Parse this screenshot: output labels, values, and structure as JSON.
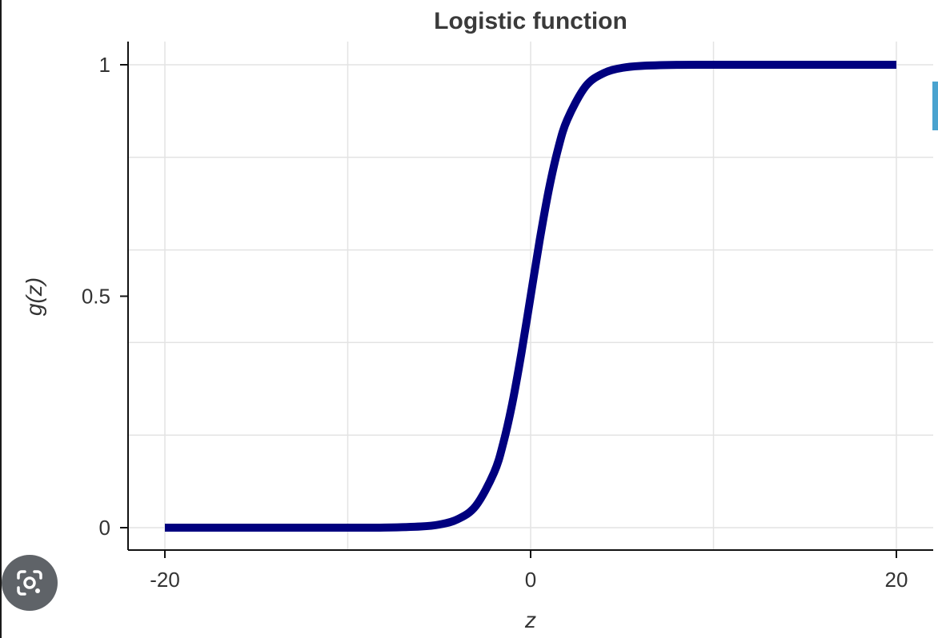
{
  "chart_data": {
    "type": "line",
    "title": "Logistic function",
    "xlabel": "z",
    "ylabel": "g(z)",
    "xlim": [
      -21,
      22
    ],
    "ylim": [
      -0.05,
      1.05
    ],
    "x_ticks": [
      {
        "value": -20,
        "label": "-20"
      },
      {
        "value": 0,
        "label": "0"
      },
      {
        "value": 20,
        "label": "20"
      }
    ],
    "y_ticks": [
      {
        "value": 0,
        "label": "0"
      },
      {
        "value": 0.5,
        "label": "0.5"
      },
      {
        "value": 1,
        "label": "1"
      }
    ],
    "x_grid": [
      -20,
      -10,
      0,
      10,
      20
    ],
    "y_grid": [
      0,
      0.2,
      0.4,
      0.6,
      0.8,
      1
    ],
    "grid": true,
    "series": [
      {
        "color": "#00007f",
        "x": [
          -20,
          -15,
          -10,
          -8,
          -6,
          -5,
          -4,
          -3,
          -2,
          -1.5,
          -1,
          -0.5,
          0,
          0.5,
          1,
          1.5,
          2,
          3,
          4,
          5,
          6,
          8,
          10,
          15,
          20
        ],
        "y": [
          0.0,
          0.0,
          0.0,
          0.0003,
          0.0025,
          0.0067,
          0.018,
          0.047,
          0.119,
          0.182,
          0.269,
          0.378,
          0.5,
          0.622,
          0.731,
          0.818,
          0.881,
          0.953,
          0.982,
          0.9933,
          0.9975,
          0.9997,
          1.0,
          1.0,
          1.0
        ]
      }
    ]
  },
  "overlay": {
    "lens_icon": "google-lens-icon",
    "side_tab_color": "#4aa3cf"
  }
}
